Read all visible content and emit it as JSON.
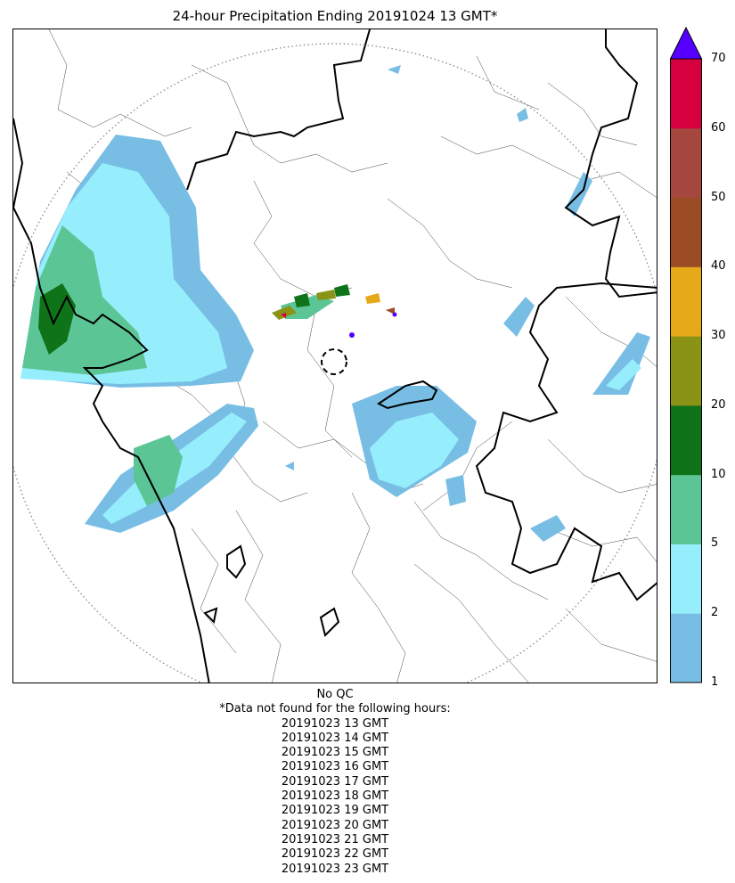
{
  "title": "24-hour Precipitation Ending 20191024 13 GMT*",
  "colorbar": {
    "ticks": [
      {
        "value": 1,
        "label": "1"
      },
      {
        "value": 2,
        "label": "2"
      },
      {
        "value": 5,
        "label": "5"
      },
      {
        "value": 10,
        "label": "10"
      },
      {
        "value": 20,
        "label": "20"
      },
      {
        "value": 30,
        "label": "30"
      },
      {
        "value": 40,
        "label": "40"
      },
      {
        "value": 50,
        "label": "50"
      },
      {
        "value": 60,
        "label": "60"
      },
      {
        "value": 70,
        "label": "70"
      }
    ],
    "bins": [
      {
        "range": "1-2",
        "color": "#78bee4"
      },
      {
        "range": "2-5",
        "color": "#96eefc"
      },
      {
        "range": "5-10",
        "color": "#5cc596"
      },
      {
        "range": "10-20",
        "color": "#0f7319"
      },
      {
        "range": "20-30",
        "color": "#8b9317"
      },
      {
        "range": "30-40",
        "color": "#e5a919"
      },
      {
        "range": "40-50",
        "color": "#9c4c25"
      },
      {
        "range": "50-60",
        "color": "#a5473f"
      },
      {
        "range": "60-70",
        "color": "#d6003f"
      }
    ],
    "extend_max_color": "#5500ff"
  },
  "footer": {
    "qc_note": "No QC",
    "missing_header": "*Data not found for the following hours:",
    "missing_hours": [
      "20191023 13 GMT",
      "20191023 14 GMT",
      "20191023 15 GMT",
      "20191023 16 GMT",
      "20191023 17 GMT",
      "20191023 18 GMT",
      "20191023 19 GMT",
      "20191023 20 GMT",
      "20191023 21 GMT",
      "20191023 22 GMT",
      "20191023 23 GMT"
    ]
  }
}
